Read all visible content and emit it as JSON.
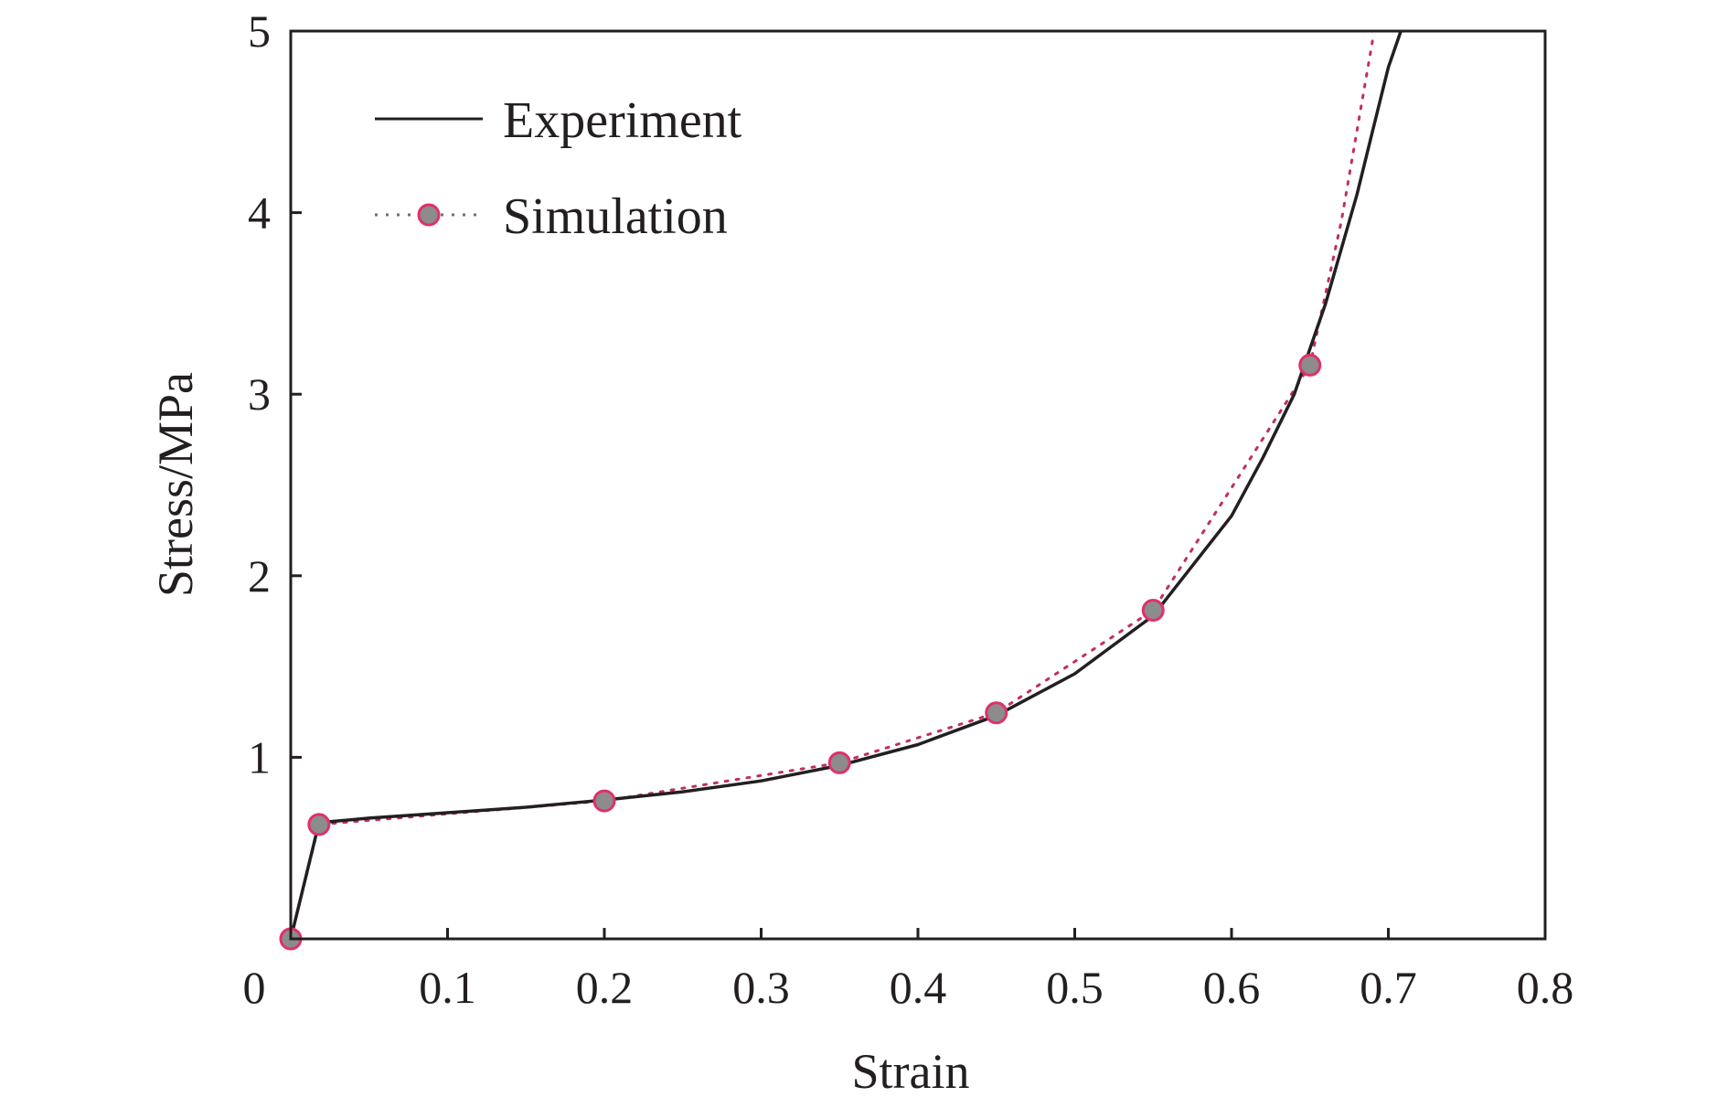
{
  "chart_data": {
    "type": "line",
    "xlabel": "Strain",
    "ylabel": "Stress/MPa",
    "xlim": [
      0,
      0.8
    ],
    "ylim": [
      0,
      5
    ],
    "x_ticks": [
      0.1,
      0.2,
      0.3,
      0.4,
      0.5,
      0.6,
      0.7,
      0.8
    ],
    "x_tick_labels": [
      "0.1",
      "0.2",
      "0.3",
      "0.4",
      "0.5",
      "0.6",
      "0.7",
      "0.8"
    ],
    "origin_label": "0",
    "y_ticks": [
      1,
      2,
      3,
      4,
      5
    ],
    "y_tick_labels": [
      "1",
      "2",
      "3",
      "4",
      "5"
    ],
    "grid": false,
    "legend_position": "top-left",
    "colors": {
      "experiment_line": "#231f20",
      "simulation_line": "#c0305a",
      "marker_fill": "#8c8c8c",
      "marker_edge": "#e0306a",
      "axis": "#231f20"
    },
    "series": [
      {
        "name": "Experiment",
        "style": "solid",
        "x": [
          0,
          0.018,
          0.05,
          0.1,
          0.15,
          0.2,
          0.25,
          0.3,
          0.35,
          0.4,
          0.45,
          0.5,
          0.55,
          0.6,
          0.62,
          0.64,
          0.66,
          0.68,
          0.69,
          0.7,
          0.71
        ],
        "y": [
          0,
          0.64,
          0.665,
          0.695,
          0.725,
          0.765,
          0.81,
          0.87,
          0.955,
          1.07,
          1.23,
          1.46,
          1.78,
          2.33,
          2.65,
          3.0,
          3.5,
          4.1,
          4.45,
          4.8,
          5.05
        ]
      },
      {
        "name": "Simulation",
        "style": "dotted-markers",
        "x": [
          0,
          0.018,
          0.2,
          0.35,
          0.45,
          0.55,
          0.65,
          0.67,
          0.69
        ],
        "y": [
          0,
          0.63,
          0.76,
          0.97,
          1.245,
          1.81,
          3.16,
          3.95,
          4.95
        ],
        "markers_x": [
          0,
          0.018,
          0.2,
          0.35,
          0.45,
          0.55,
          0.65
        ],
        "markers_y": [
          0,
          0.63,
          0.76,
          0.97,
          1.245,
          1.81,
          3.16
        ]
      }
    ]
  }
}
